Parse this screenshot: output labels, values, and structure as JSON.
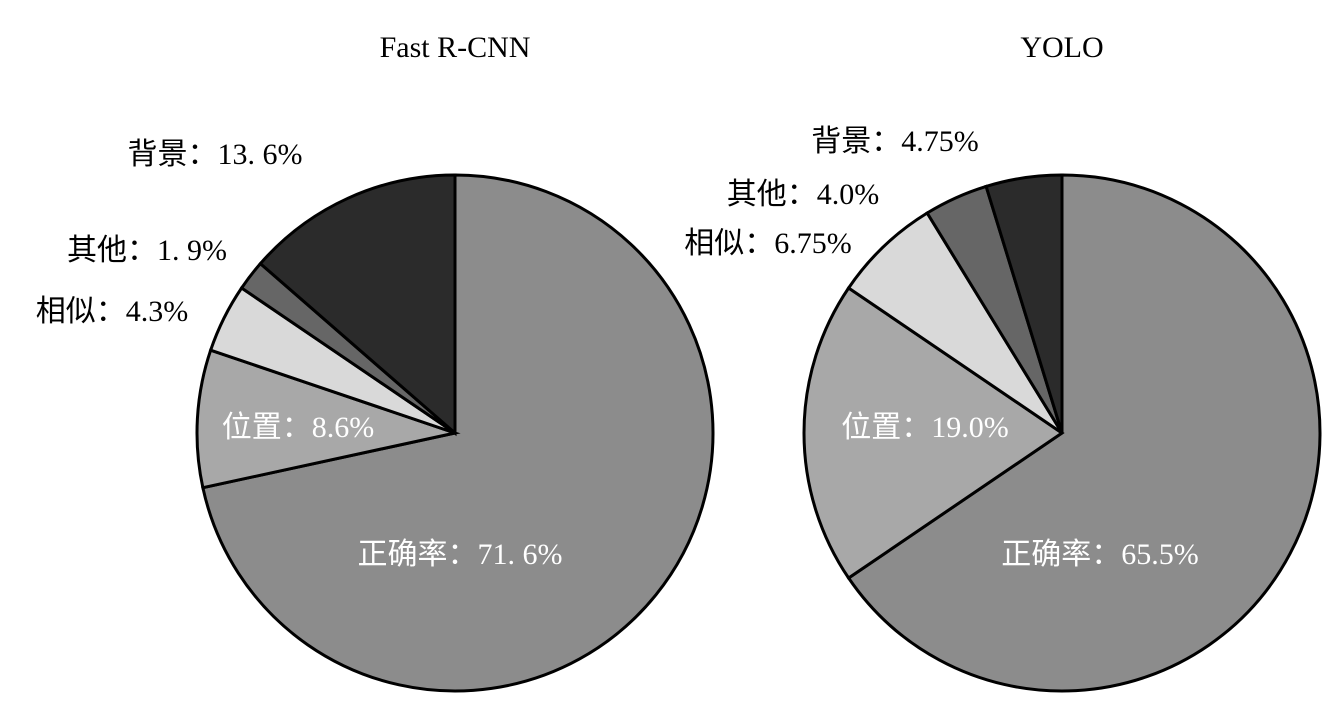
{
  "chart_data": [
    {
      "type": "pie",
      "title": "Fast R-CNN",
      "categories": [
        "正确率：",
        "位置：",
        "相似：",
        "其他：",
        "背景："
      ],
      "values": [
        71.6,
        8.6,
        4.3,
        1.9,
        13.6
      ],
      "value_labels": [
        "71. 6%",
        "8.6%",
        "4.3%",
        "1. 9%",
        "13. 6%"
      ],
      "colors": [
        "#8c8c8c",
        "#a8a8a8",
        "#d9d9d9",
        "#666666",
        "#2b2b2b"
      ]
    },
    {
      "type": "pie",
      "title": "YOLO",
      "categories": [
        "正确率：",
        "位置：",
        "相似：",
        "其他：",
        "背景："
      ],
      "values": [
        65.5,
        19.0,
        6.75,
        4.0,
        4.75
      ],
      "value_labels": [
        "65.5%",
        "19.0%",
        "6.75%",
        "4.0%",
        "4.75%"
      ],
      "colors": [
        "#8c8c8c",
        "#a8a8a8",
        "#d9d9d9",
        "#666666",
        "#2b2b2b"
      ]
    }
  ]
}
